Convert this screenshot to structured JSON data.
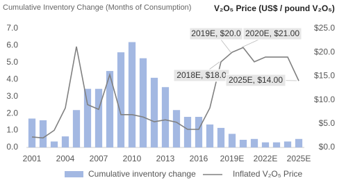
{
  "chart_data": {
    "type": "bar-line",
    "title": "Cumulative Inventory Change (Months of Consumption)",
    "y2_title": "V₂O₅ Price (US$ / pound V₂O₅)",
    "categories": [
      "2001",
      null,
      null,
      "2004",
      null,
      null,
      "2007",
      null,
      null,
      "2010",
      null,
      null,
      "2013",
      null,
      null,
      "2016",
      null,
      null,
      "2019E",
      null,
      null,
      "2022E",
      null,
      null,
      "2025E"
    ],
    "series": [
      {
        "name": "Cumulative inventory change",
        "type": "bar",
        "color": "#a3b8e2",
        "values": [
          1.7,
          1.6,
          0.35,
          0.65,
          2.2,
          3.45,
          3.45,
          4.5,
          5.6,
          6.2,
          5.25,
          4.1,
          3.55,
          2.2,
          1.8,
          1.8,
          1.35,
          1.15,
          0.8,
          0.45,
          0.5,
          0.3,
          0.3,
          0.35,
          0.5
        ]
      },
      {
        "name": "Inflated V₂O₅ Price",
        "type": "line",
        "axis": "y2",
        "color": "#808080",
        "values": [
          2.2,
          2.0,
          3.6,
          8.3,
          21.2,
          9.0,
          8.0,
          15.3,
          6.9,
          6.9,
          6.4,
          5.4,
          5.8,
          5.3,
          3.8,
          3.8,
          8.3,
          18.0,
          20.0,
          21.0,
          18.0,
          19.0,
          19.0,
          19.0,
          14.0
        ]
      }
    ],
    "annotations": [
      "2018E, $18.0",
      "2019E, $20.0",
      "2020E, $21.00",
      "2025E, $14.00"
    ],
    "ylim": [
      0,
      7
    ],
    "yticks": [
      {
        "value": 0,
        "label": "0.0"
      },
      {
        "value": 1,
        "label": "1.0"
      },
      {
        "value": 2,
        "label": "2.0"
      },
      {
        "value": 3,
        "label": "3.0"
      },
      {
        "value": 4,
        "label": "4.0"
      },
      {
        "value": 5,
        "label": "5.0"
      },
      {
        "value": 6,
        "label": "6.0"
      },
      {
        "value": 7,
        "label": "7.0"
      }
    ],
    "y2lim": [
      0,
      25
    ],
    "y2ticks": [
      {
        "value": 0,
        "label": "$0.0"
      },
      {
        "value": 5,
        "label": "$5.0"
      },
      {
        "value": 10,
        "label": "$10.0"
      },
      {
        "value": 15,
        "label": "$15.0"
      },
      {
        "value": 20,
        "label": "$20.0"
      },
      {
        "value": 25,
        "label": "$25.0"
      }
    ],
    "grid": false
  }
}
